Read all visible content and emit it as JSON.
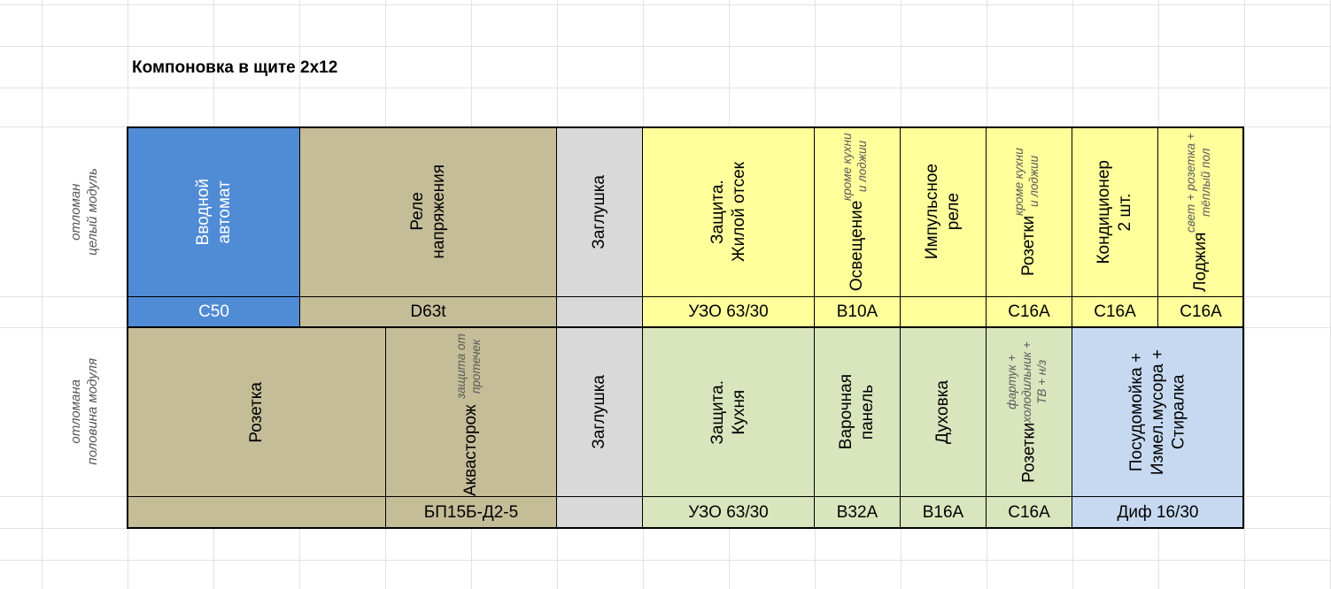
{
  "title": "Компоновка в щите 2x12",
  "colors": {
    "blue": "#508bd6",
    "tan": "#c5bd98",
    "gray": "#d9d9d9",
    "yellow": "#ffff9c",
    "green": "#d9e5bd",
    "lightblue": "#c6d9f0"
  },
  "side_labels": [
    "отломан\nцелый модуль",
    "отломана\nполовина модуля"
  ],
  "row1": [
    {
      "main": "Вводной\nавтомат",
      "sub": "",
      "rating": "C50"
    },
    {
      "main": "Реле\nнапряжения",
      "sub": "",
      "rating": "D63t"
    },
    {
      "main": "Заглушка",
      "sub": "",
      "rating": ""
    },
    {
      "main": "Защита.\nЖилой отсек",
      "sub": "",
      "rating": "УЗО 63/30"
    },
    {
      "main": "Освещение",
      "sub": "кроме кухни\nи лоджии",
      "rating": "B10A"
    },
    {
      "main": "Импульсное\nреле",
      "sub": "",
      "rating": ""
    },
    {
      "main": "Розетки",
      "sub": "кроме кухни\nи лоджии",
      "rating": "C16A"
    },
    {
      "main": "Кондиционер\n2 шт.",
      "sub": "",
      "rating": "C16A"
    },
    {
      "main": "Лоджия",
      "sub": "свет + розетка +\nтёплый пол",
      "rating": "C16A"
    }
  ],
  "row2": [
    {
      "main": "Розетка",
      "sub": "",
      "rating": ""
    },
    {
      "main": "Аквасторож",
      "sub": "защита от протечек",
      "rating": "БП15Б-Д2-5"
    },
    {
      "main": "Заглушка",
      "sub": "",
      "rating": ""
    },
    {
      "main": "Защита.\nКухня",
      "sub": "",
      "rating": "УЗО 63/30"
    },
    {
      "main": "Варочная\nпанель",
      "sub": "",
      "rating": "B32A"
    },
    {
      "main": "Духовка",
      "sub": "",
      "rating": "B16A"
    },
    {
      "main": "Розетки",
      "sub": "фартук +\nхолодильник  +\nТВ + н/з",
      "rating": "C16A"
    },
    {
      "main": "Посудомойка +\nИзмел.мусора +\nСтиралка",
      "sub": "",
      "rating": "Диф 16/30"
    }
  ]
}
